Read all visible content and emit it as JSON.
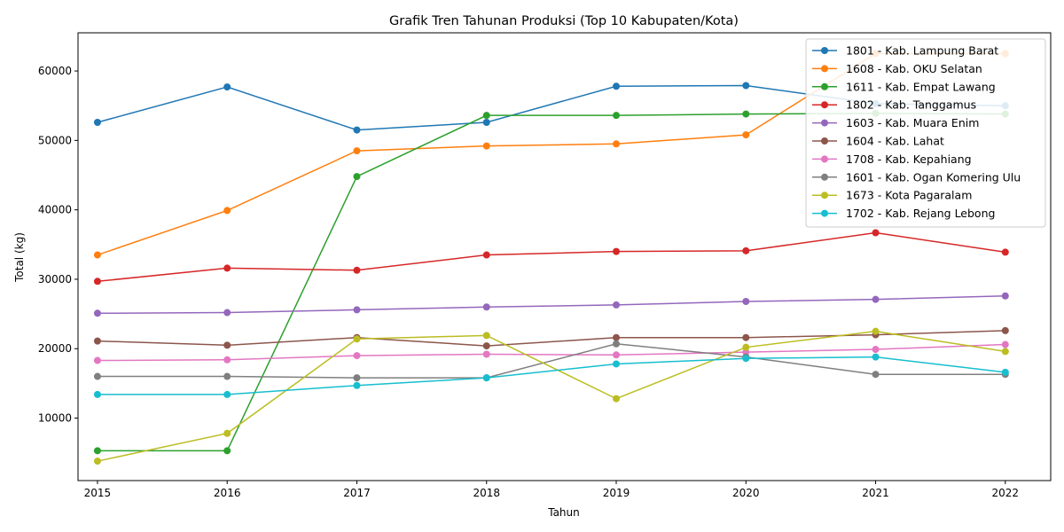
{
  "chart_data": {
    "type": "line",
    "title": "Grafik Tren Tahunan Produksi (Top 10 Kabupaten/Kota)",
    "xlabel": "Tahun",
    "ylabel": "Total (kg)",
    "x": [
      2015,
      2016,
      2017,
      2018,
      2019,
      2020,
      2021,
      2022
    ],
    "xlim": [
      2014.85,
      2022.35
    ],
    "ylim": [
      1000,
      65500
    ],
    "yticks": [
      10000,
      20000,
      30000,
      40000,
      50000,
      60000
    ],
    "grid": false,
    "legend_position": "top-right",
    "series": [
      {
        "name": "1801 - Kab. Lampung Barat",
        "color": "#1f77b4",
        "values": [
          52600,
          57700,
          51500,
          52600,
          57800,
          57900,
          55300,
          55000
        ]
      },
      {
        "name": "1608 - Kab. OKU Selatan",
        "color": "#ff7f0e",
        "values": [
          33500,
          39900,
          48500,
          49200,
          49500,
          50800,
          62500,
          62500
        ]
      },
      {
        "name": "1611 - Kab. Empat Lawang",
        "color": "#2ca02c",
        "values": [
          5300,
          5300,
          44800,
          53600,
          53600,
          53800,
          53900,
          53800
        ]
      },
      {
        "name": "1802 - Kab. Tanggamus",
        "color": "#d62728",
        "values": [
          29700,
          31600,
          31300,
          33500,
          34000,
          34100,
          36700,
          33900
        ]
      },
      {
        "name": "1603 - Kab. Muara Enim",
        "color": "#9467bd",
        "values": [
          25100,
          25200,
          25600,
          26000,
          26300,
          26800,
          27100,
          27600
        ]
      },
      {
        "name": "1604 - Kab. Lahat",
        "color": "#8c564b",
        "values": [
          21100,
          20500,
          21600,
          20400,
          21600,
          21600,
          22000,
          22600
        ]
      },
      {
        "name": "1708 - Kab. Kepahiang",
        "color": "#e377c2",
        "values": [
          18300,
          18400,
          19000,
          19200,
          19100,
          19500,
          19900,
          20600
        ]
      },
      {
        "name": "1601 - Kab. Ogan Komering Ulu",
        "color": "#7f7f7f",
        "values": [
          16000,
          16000,
          15800,
          15800,
          20700,
          18800,
          16300,
          16300
        ]
      },
      {
        "name": "1673 - Kota Pagaralam",
        "color": "#bcbd22",
        "values": [
          3800,
          7800,
          21400,
          21900,
          12800,
          20200,
          22500,
          19600
        ]
      },
      {
        "name": "1702 - Kab. Rejang Lebong",
        "color": "#17becf",
        "values": [
          13400,
          13400,
          14700,
          15800,
          17800,
          18600,
          18800,
          16600
        ]
      }
    ]
  }
}
